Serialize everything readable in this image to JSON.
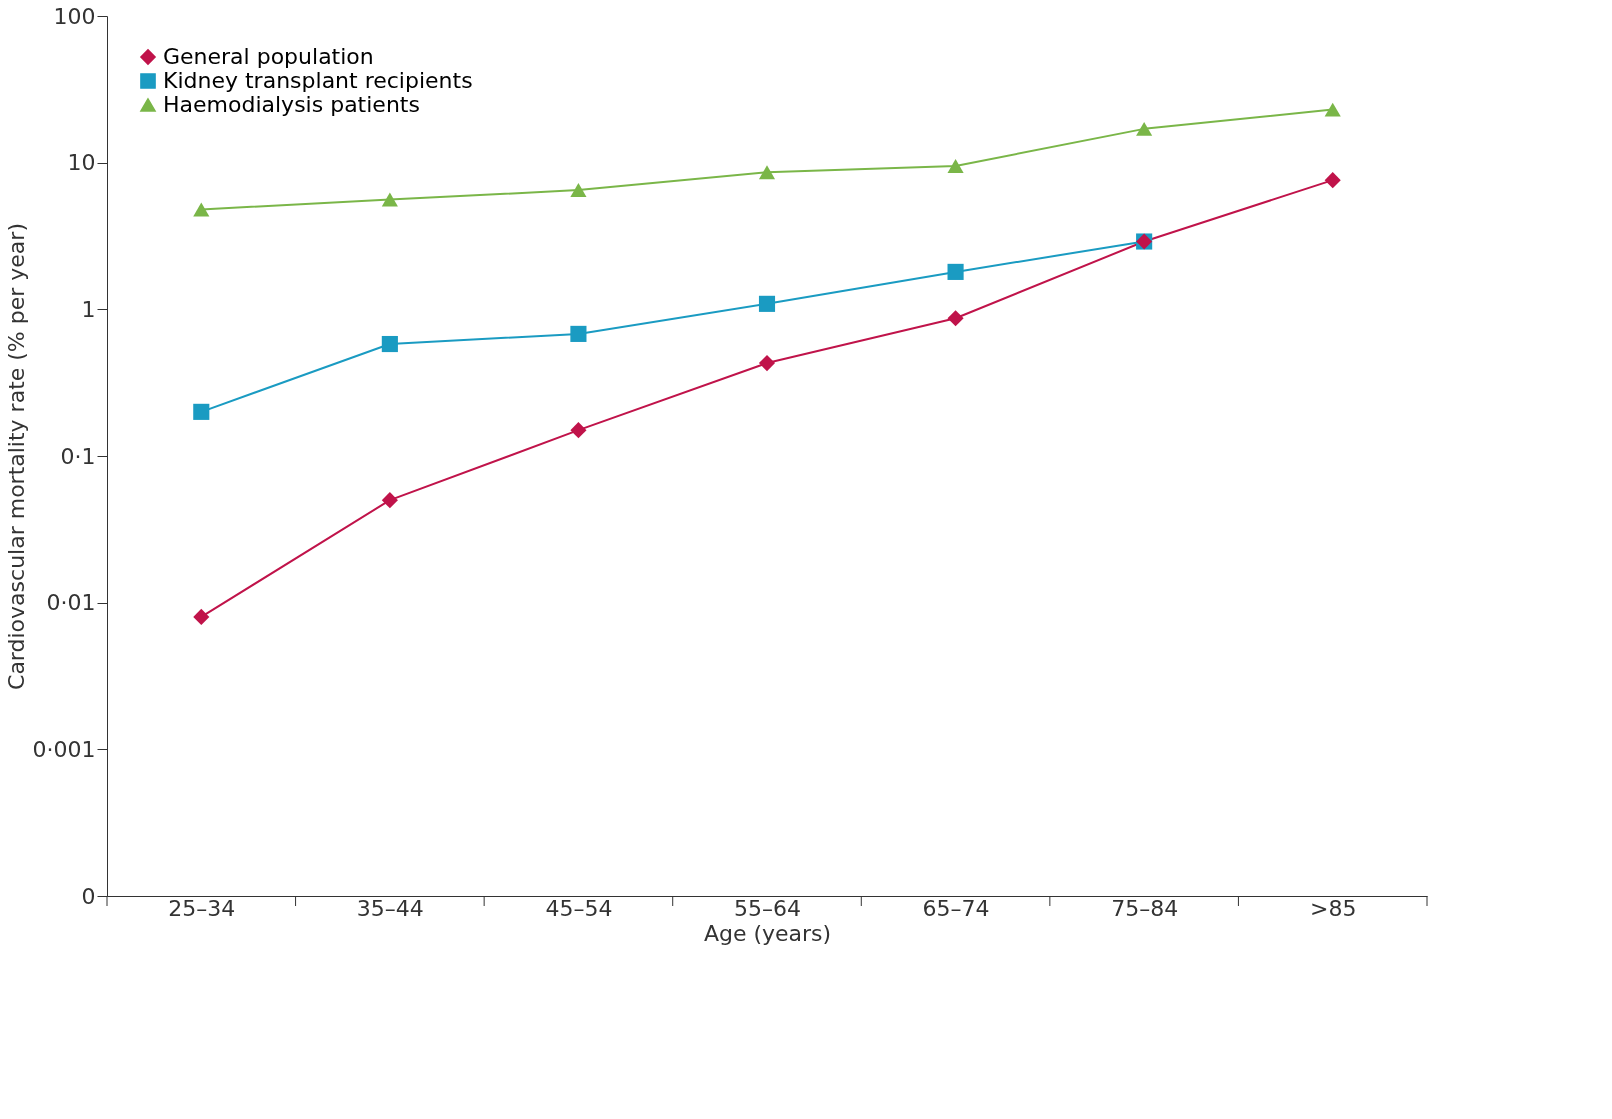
{
  "chart_data": {
    "type": "line",
    "xlabel": "Age (years)",
    "ylabel": "Cardiovascular mortality rate (% per year)",
    "categories": [
      "25–34",
      "35–44",
      "45–54",
      "55–64",
      "65–74",
      "75–84",
      ">85"
    ],
    "series": [
      {
        "name": "General population",
        "color": "#c0134a",
        "marker": "diamond",
        "values": [
          0.008,
          0.05,
          0.15,
          0.43,
          0.87,
          2.9,
          7.6
        ]
      },
      {
        "name": "Kidney transplant recipients",
        "color": "#1a9bc2",
        "marker": "square",
        "values": [
          0.2,
          0.58,
          0.68,
          1.09,
          1.8,
          2.9,
          null
        ]
      },
      {
        "name": "Haemodialysis patients",
        "color": "#7ab648",
        "marker": "triangle",
        "values": [
          4.8,
          5.6,
          6.5,
          8.6,
          9.5,
          17,
          23
        ]
      }
    ],
    "log": true,
    "ylim": [
      0.0001,
      100
    ],
    "yticks": [
      {
        "value": 0.0001,
        "label": "0"
      },
      {
        "value": 0.001,
        "label": "0·001"
      },
      {
        "value": 0.01,
        "label": "0·01"
      },
      {
        "value": 0.1,
        "label": "0·1"
      },
      1,
      10,
      100
    ],
    "grid": false,
    "legend": "top left",
    "line_style": "solid"
  }
}
